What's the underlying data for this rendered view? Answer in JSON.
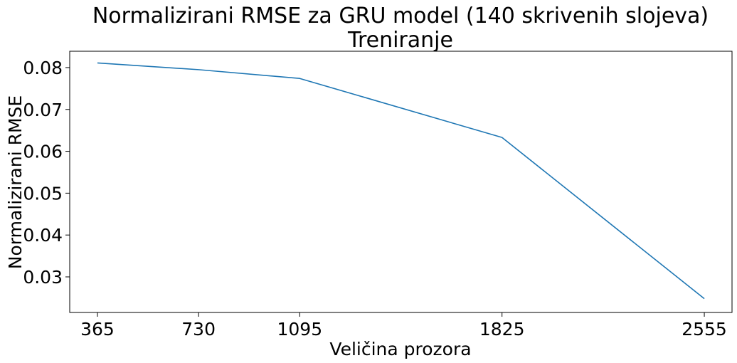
{
  "chart_data": {
    "type": "line",
    "title": "Normalizirani RMSE za GRU model (140 skrivenih slojeva)",
    "subtitle": "Treniranje",
    "xlabel": "Veličina prozora",
    "ylabel": "Normalizirani RMSE",
    "x": [
      365,
      730,
      1095,
      1825,
      2555
    ],
    "x_ticks": [
      "365",
      "730",
      "1095",
      "1825",
      "2555"
    ],
    "y_ticks": [
      "0.03",
      "0.04",
      "0.05",
      "0.06",
      "0.07",
      "0.08"
    ],
    "xlim": [
      265,
      2655
    ],
    "ylim": [
      0.0215,
      0.0839
    ],
    "grid": false,
    "series": [
      {
        "values": [
          0.0811,
          0.0795,
          0.0774,
          0.0633,
          0.0248
        ],
        "color": "#1f77b4"
      }
    ]
  }
}
